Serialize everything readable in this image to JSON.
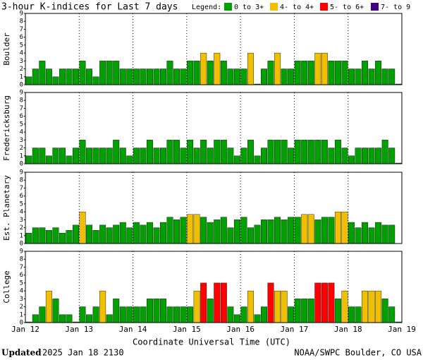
{
  "title": "3-hour K-indices for Last 7 days",
  "legend": {
    "title": "Legend:",
    "entries": [
      {
        "name": "0 to 3+",
        "color": "#00a000"
      },
      {
        "name": "4- to 4+",
        "color": "#f0c000"
      },
      {
        "name": "5- to 6+",
        "color": "#ff0000"
      },
      {
        "name": "7- to 9",
        "color": "#400080"
      }
    ]
  },
  "xticks": [
    "Jan 12",
    "Jan 13",
    "Jan 14",
    "Jan 15",
    "Jan 16",
    "Jan 17",
    "Jan 18",
    "Jan 19"
  ],
  "xlabel": "Coordinate Universal Time (UTC)",
  "footer": {
    "updated_label": "Updated",
    "updated": "2025 Jan 18 2130",
    "source": "NOAA/SWPC Boulder, CO USA"
  },
  "chart_data": [
    {
      "type": "bar",
      "ylabel": "Boulder",
      "ylim": [
        0,
        9
      ],
      "yticks": [
        0,
        1,
        2,
        3,
        4,
        5,
        6,
        7,
        8,
        9
      ],
      "values": [
        1,
        2,
        3,
        2,
        1,
        2,
        2,
        2,
        3,
        2,
        1,
        3,
        3,
        3,
        2,
        2,
        2,
        2,
        2,
        2,
        2,
        3,
        2,
        2,
        3,
        3,
        4,
        3,
        4,
        3,
        2,
        2,
        2,
        4,
        0,
        2,
        3,
        4,
        2,
        2,
        3,
        3,
        3,
        4,
        4,
        3,
        3,
        3,
        2,
        2,
        3,
        2,
        3,
        2,
        2,
        0
      ]
    },
    {
      "type": "bar",
      "ylabel": "Fredericksburg",
      "ylim": [
        0,
        9
      ],
      "yticks": [
        0,
        1,
        2,
        3,
        4,
        5,
        6,
        7,
        8,
        9
      ],
      "values": [
        1,
        2,
        2,
        1,
        2,
        2,
        1,
        2,
        3,
        2,
        2,
        2,
        2,
        3,
        2,
        1,
        2,
        2,
        3,
        2,
        2,
        3,
        3,
        2,
        3,
        2,
        3,
        2,
        3,
        3,
        2,
        1,
        2,
        3,
        1,
        2,
        3,
        3,
        3,
        2,
        3,
        3,
        3,
        3,
        3,
        2,
        3,
        2,
        1,
        2,
        2,
        2,
        2,
        3,
        2,
        0
      ]
    },
    {
      "type": "bar",
      "ylabel": "Est. Planetary",
      "ylim": [
        0,
        9
      ],
      "yticks": [
        0,
        1,
        2,
        3,
        4,
        5,
        6,
        7,
        8,
        9
      ],
      "values": [
        1.33,
        2,
        2,
        1.67,
        2,
        1.33,
        1.67,
        2.33,
        4,
        2.33,
        1.67,
        2.33,
        2,
        2.33,
        2.67,
        2,
        2.67,
        2.33,
        2.67,
        2,
        2.67,
        3.33,
        3,
        3.33,
        3.67,
        3.67,
        3.33,
        2.67,
        3,
        3.33,
        2,
        3,
        3.33,
        2,
        2.33,
        3,
        3,
        3.33,
        3,
        3.33,
        3.33,
        3.67,
        3.67,
        3,
        3.33,
        3.33,
        4,
        4,
        2.67,
        2,
        2.67,
        2,
        2.67,
        2.33,
        2.33,
        null
      ]
    },
    {
      "type": "bar",
      "ylabel": "College",
      "ylim": [
        0,
        9
      ],
      "yticks": [
        0,
        1,
        2,
        3,
        4,
        5,
        6,
        7,
        8,
        9
      ],
      "values": [
        0,
        1,
        2,
        4,
        3,
        1,
        1,
        0,
        2,
        1,
        2,
        4,
        1,
        3,
        2,
        2,
        2,
        2,
        3,
        3,
        3,
        2,
        2,
        2,
        2,
        4,
        5,
        3,
        5,
        5,
        2,
        1,
        2,
        4,
        1,
        2,
        5,
        4,
        4,
        2,
        3,
        3,
        3,
        5,
        5,
        5,
        3,
        4,
        2,
        2,
        4,
        4,
        4,
        3,
        2,
        0
      ]
    }
  ]
}
